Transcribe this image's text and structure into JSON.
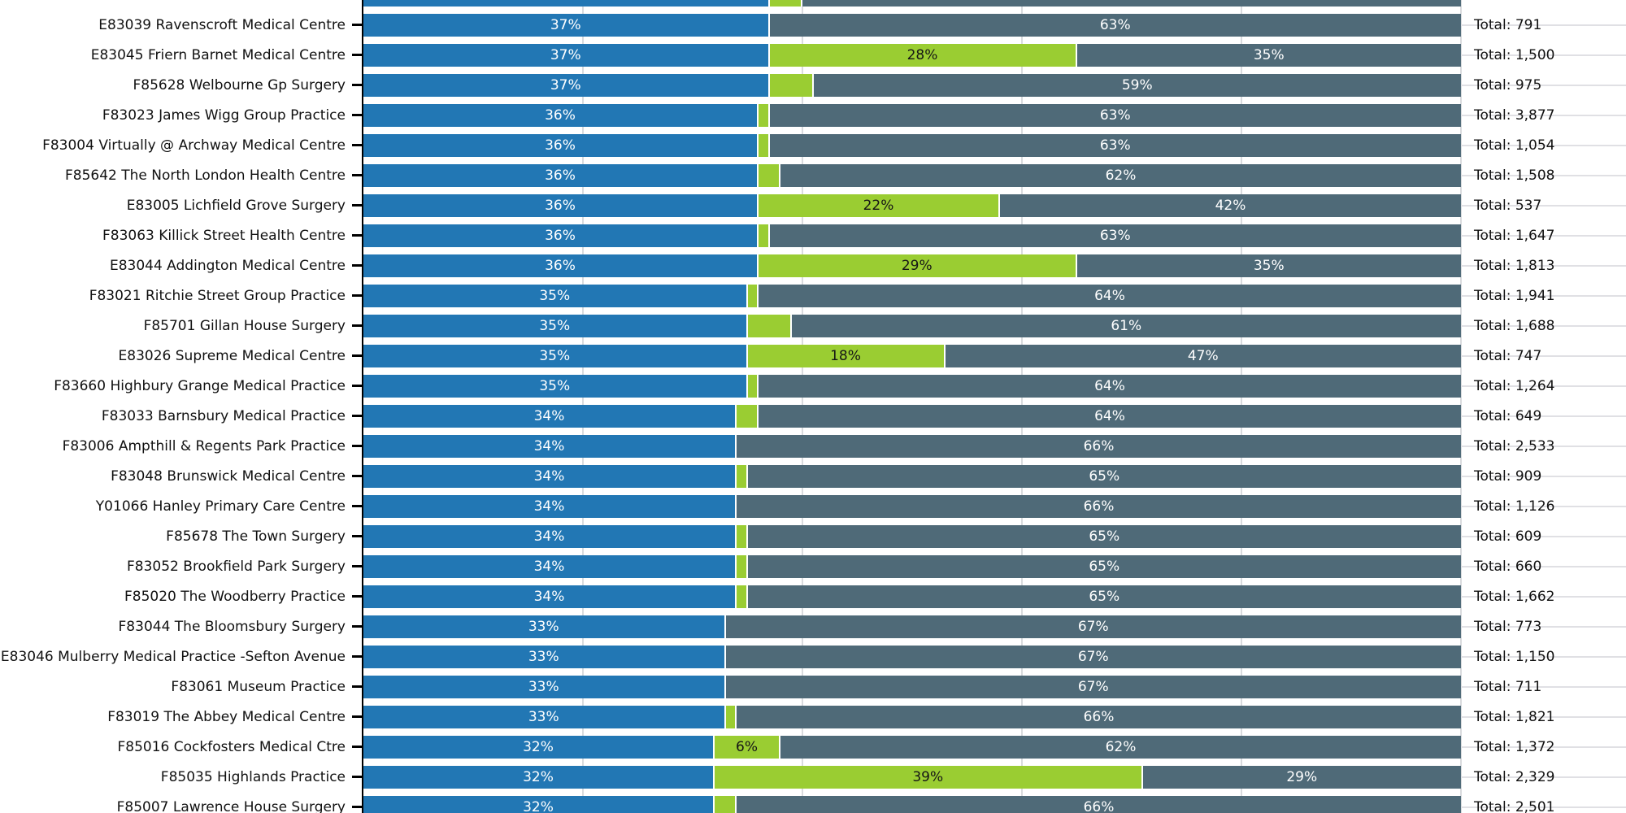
{
  "chart_data": {
    "type": "bar",
    "orientation": "horizontal",
    "stacked": true,
    "title": "",
    "xlabel": "",
    "ylabel": "",
    "unit": "percent",
    "xlim_pct": [
      0,
      100
    ],
    "grid": true,
    "legend": "none",
    "x_gridlines_pct": [
      20,
      40,
      60,
      80,
      100
    ],
    "colors": {
      "segment_1": "#2277b4",
      "segment_2": "#9acd32",
      "segment_3": "#4f6a78",
      "gridline": "#dcdce0",
      "axis_spine": "#000000",
      "text": "#111111",
      "pct_text_light": "#ffffff",
      "pct_text_dark": "#161616"
    },
    "total_prefix": "Total: ",
    "rows": [
      {
        "label": "",
        "values": [
          37,
          3,
          60
        ],
        "value_labels": [
          "",
          "",
          ""
        ],
        "total": null,
        "total_label": ""
      },
      {
        "label": "E83039 Ravenscroft Medical Centre",
        "values": [
          37,
          0,
          63
        ],
        "value_labels": [
          "37%",
          "",
          "63%"
        ],
        "total": 791,
        "total_label": "Total: 791"
      },
      {
        "label": "E83045 Friern Barnet Medical Centre",
        "values": [
          37,
          28,
          35
        ],
        "value_labels": [
          "37%",
          "28%",
          "35%"
        ],
        "total": 1500,
        "total_label": "Total: 1,500"
      },
      {
        "label": "F85628 Welbourne Gp Surgery",
        "values": [
          37,
          4,
          59
        ],
        "value_labels": [
          "37%",
          "",
          "59%"
        ],
        "total": 975,
        "total_label": "Total: 975"
      },
      {
        "label": "F83023 James Wigg Group Practice",
        "values": [
          36,
          1,
          63
        ],
        "value_labels": [
          "36%",
          "",
          "63%"
        ],
        "total": 3877,
        "total_label": "Total: 3,877"
      },
      {
        "label": "F83004 Virtually @ Archway Medical Centre",
        "values": [
          36,
          1,
          63
        ],
        "value_labels": [
          "36%",
          "",
          "63%"
        ],
        "total": 1054,
        "total_label": "Total: 1,054"
      },
      {
        "label": "F85642 The North London Health Centre",
        "values": [
          36,
          2,
          62
        ],
        "value_labels": [
          "36%",
          "",
          "62%"
        ],
        "total": 1508,
        "total_label": "Total: 1,508"
      },
      {
        "label": "E83005 Lichfield Grove Surgery",
        "values": [
          36,
          22,
          42
        ],
        "value_labels": [
          "36%",
          "22%",
          "42%"
        ],
        "total": 537,
        "total_label": "Total: 537"
      },
      {
        "label": "F83063 Killick Street Health Centre",
        "values": [
          36,
          1,
          63
        ],
        "value_labels": [
          "36%",
          "",
          "63%"
        ],
        "total": 1647,
        "total_label": "Total: 1,647"
      },
      {
        "label": "E83044 Addington Medical Centre",
        "values": [
          36,
          29,
          35
        ],
        "value_labels": [
          "36%",
          "29%",
          "35%"
        ],
        "total": 1813,
        "total_label": "Total: 1,813"
      },
      {
        "label": "F83021 Ritchie Street Group Practice",
        "values": [
          35,
          1,
          64
        ],
        "value_labels": [
          "35%",
          "",
          "64%"
        ],
        "total": 1941,
        "total_label": "Total: 1,941"
      },
      {
        "label": "F85701 Gillan House Surgery",
        "values": [
          35,
          4,
          61
        ],
        "value_labels": [
          "35%",
          "",
          "61%"
        ],
        "total": 1688,
        "total_label": "Total: 1,688"
      },
      {
        "label": "E83026 Supreme Medical Centre",
        "values": [
          35,
          18,
          47
        ],
        "value_labels": [
          "35%",
          "18%",
          "47%"
        ],
        "total": 747,
        "total_label": "Total: 747"
      },
      {
        "label": "F83660 Highbury Grange Medical Practice",
        "values": [
          35,
          1,
          64
        ],
        "value_labels": [
          "35%",
          "",
          "64%"
        ],
        "total": 1264,
        "total_label": "Total: 1,264"
      },
      {
        "label": "F83033 Barnsbury Medical Practice",
        "values": [
          34,
          2,
          64
        ],
        "value_labels": [
          "34%",
          "",
          "64%"
        ],
        "total": 649,
        "total_label": "Total: 649"
      },
      {
        "label": "F83006 Ampthill & Regents Park Practice",
        "values": [
          34,
          0,
          66
        ],
        "value_labels": [
          "34%",
          "",
          "66%"
        ],
        "total": 2533,
        "total_label": "Total: 2,533"
      },
      {
        "label": "F83048 Brunswick Medical Centre",
        "values": [
          34,
          1,
          65
        ],
        "value_labels": [
          "34%",
          "",
          "65%"
        ],
        "total": 909,
        "total_label": "Total: 909"
      },
      {
        "label": "Y01066 Hanley Primary Care Centre",
        "values": [
          34,
          0,
          66
        ],
        "value_labels": [
          "34%",
          "",
          "66%"
        ],
        "total": 1126,
        "total_label": "Total: 1,126"
      },
      {
        "label": "F85678 The Town Surgery",
        "values": [
          34,
          1,
          65
        ],
        "value_labels": [
          "34%",
          "",
          "65%"
        ],
        "total": 609,
        "total_label": "Total: 609"
      },
      {
        "label": "F83052 Brookfield Park Surgery",
        "values": [
          34,
          1,
          65
        ],
        "value_labels": [
          "34%",
          "",
          "65%"
        ],
        "total": 660,
        "total_label": "Total: 660"
      },
      {
        "label": "F85020 The Woodberry Practice",
        "values": [
          34,
          1,
          65
        ],
        "value_labels": [
          "34%",
          "",
          "65%"
        ],
        "total": 1662,
        "total_label": "Total: 1,662"
      },
      {
        "label": "F83044 The Bloomsbury Surgery",
        "values": [
          33,
          0,
          67
        ],
        "value_labels": [
          "33%",
          "",
          "67%"
        ],
        "total": 773,
        "total_label": "Total: 773"
      },
      {
        "label": "E83046 Mulberry Medical Practice -Sefton Avenue",
        "values": [
          33,
          0,
          67
        ],
        "value_labels": [
          "33%",
          "",
          "67%"
        ],
        "total": 1150,
        "total_label": "Total: 1,150"
      },
      {
        "label": "F83061 Museum Practice",
        "values": [
          33,
          0,
          67
        ],
        "value_labels": [
          "33%",
          "",
          "67%"
        ],
        "total": 711,
        "total_label": "Total: 711"
      },
      {
        "label": "F83019 The Abbey Medical Centre",
        "values": [
          33,
          1,
          66
        ],
        "value_labels": [
          "33%",
          "",
          "66%"
        ],
        "total": 1821,
        "total_label": "Total: 1,821"
      },
      {
        "label": "F85016 Cockfosters Medical Ctre",
        "values": [
          32,
          6,
          62
        ],
        "value_labels": [
          "32%",
          "6%",
          "62%"
        ],
        "total": 1372,
        "total_label": "Total: 1,372"
      },
      {
        "label": "F85035 Highlands Practice",
        "values": [
          32,
          39,
          29
        ],
        "value_labels": [
          "32%",
          "39%",
          "29%"
        ],
        "total": 2329,
        "total_label": "Total: 2,329"
      },
      {
        "label": "F85007 Lawrence House Surgery",
        "values": [
          32,
          2,
          66
        ],
        "value_labels": [
          "32%",
          "",
          "66%"
        ],
        "total": 2501,
        "total_label": "Total: 2,501"
      }
    ]
  }
}
